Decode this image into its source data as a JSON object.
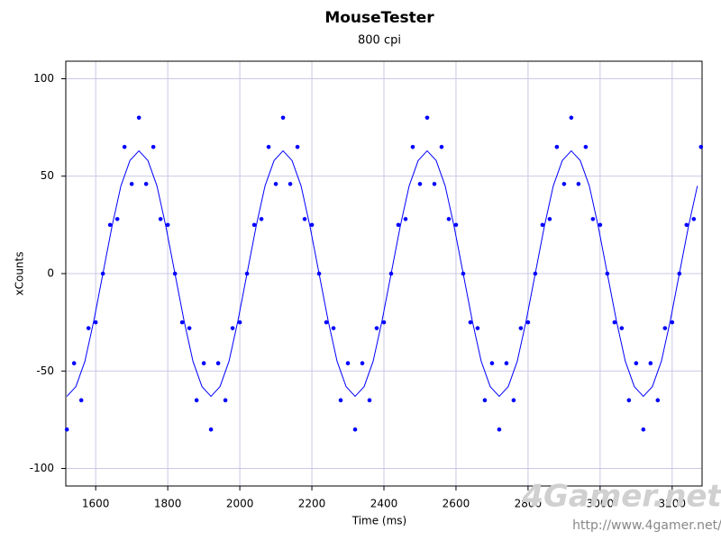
{
  "chart_data": {
    "type": "scatter-line",
    "title": "MouseTester",
    "subtitle": "800 cpi",
    "x_label": "Time (ms)",
    "y_label": "xCounts",
    "xlim": [
      1517,
      3283
    ],
    "ylim": [
      -109,
      109
    ],
    "xticks": [
      1600,
      1800,
      2000,
      2200,
      2400,
      2600,
      2800,
      3000,
      3200
    ],
    "yticks": [
      -100,
      -50,
      0,
      50,
      100
    ],
    "grid": true,
    "series": [
      {
        "kind": "points",
        "color": "#0000ff",
        "x": [
          1520,
          1540,
          1560,
          1580,
          1600,
          1620,
          1640,
          1660,
          1680,
          1700,
          1720,
          1740,
          1760,
          1780,
          1800,
          1820,
          1840,
          1860,
          1880,
          1900,
          1920,
          1940,
          1960,
          1980,
          2000,
          2020,
          2040,
          2060,
          2080,
          2100,
          2120,
          2140,
          2160,
          2180,
          2200,
          2220,
          2240,
          2260,
          2280,
          2300,
          2320,
          2340,
          2360,
          2380,
          2400,
          2420,
          2440,
          2460,
          2480,
          2500,
          2520,
          2540,
          2560,
          2580,
          2600,
          2620,
          2640,
          2660,
          2680,
          2700,
          2720,
          2740,
          2760,
          2780,
          2800,
          2820,
          2840,
          2860,
          2880,
          2900,
          2920,
          2940,
          2960,
          2980,
          3000,
          3020,
          3040,
          3060,
          3080,
          3100,
          3120,
          3140,
          3160,
          3180,
          3200,
          3220,
          3240,
          3260,
          3280
        ],
        "values": [
          -80,
          -46,
          -65,
          -28,
          -25,
          0,
          25,
          28,
          65,
          46,
          80,
          46,
          65,
          28,
          25,
          0,
          -25,
          -28,
          -65,
          -46,
          -80,
          -46,
          -65,
          -28,
          -25,
          0,
          25,
          28,
          65,
          46,
          80,
          46,
          65,
          28,
          25,
          0,
          -25,
          -28,
          -65,
          -46,
          -80,
          -46,
          -65,
          -28,
          -25,
          0,
          25,
          28,
          65,
          46,
          80,
          46,
          65,
          28,
          25,
          0,
          -25,
          -28,
          -65,
          -46,
          -80,
          -46,
          -65,
          -28,
          -25,
          0,
          25,
          28,
          65,
          46,
          80,
          46,
          65,
          28,
          25,
          0,
          -25,
          -28,
          -65,
          -46,
          -80,
          -46,
          -65,
          -28,
          -25,
          0,
          25,
          28,
          65
        ]
      },
      {
        "kind": "line",
        "color": "#0000ff",
        "x": [
          1520,
          1545,
          1570,
          1595,
          1620,
          1645,
          1670,
          1695,
          1720,
          1745,
          1770,
          1795,
          1820,
          1845,
          1870,
          1895,
          1920,
          1945,
          1970,
          1995,
          2020,
          2045,
          2070,
          2095,
          2120,
          2145,
          2170,
          2195,
          2220,
          2245,
          2270,
          2295,
          2320,
          2345,
          2370,
          2395,
          2420,
          2445,
          2470,
          2495,
          2520,
          2545,
          2570,
          2595,
          2620,
          2645,
          2670,
          2695,
          2720,
          2745,
          2770,
          2795,
          2820,
          2845,
          2870,
          2895,
          2920,
          2945,
          2970,
          2995,
          3020,
          3045,
          3070,
          3095,
          3120,
          3145,
          3170,
          3195,
          3220,
          3245,
          3270
        ],
        "values": [
          -63,
          -58,
          -45,
          -24,
          0,
          24,
          45,
          58,
          63,
          58,
          45,
          24,
          0,
          -24,
          -45,
          -58,
          -63,
          -58,
          -45,
          -24,
          0,
          24,
          45,
          58,
          63,
          58,
          45,
          24,
          0,
          -24,
          -45,
          -58,
          -63,
          -58,
          -45,
          -24,
          0,
          24,
          45,
          58,
          63,
          58,
          45,
          24,
          0,
          -24,
          -45,
          -58,
          -63,
          -58,
          -45,
          -24,
          0,
          24,
          45,
          58,
          63,
          58,
          45,
          24,
          0,
          -24,
          -45,
          -58,
          -63,
          -58,
          -45,
          -24,
          0,
          24,
          45
        ]
      }
    ]
  },
  "watermark": {
    "logo": "4Gamer.net",
    "url": "http://www.4gamer.net/"
  }
}
